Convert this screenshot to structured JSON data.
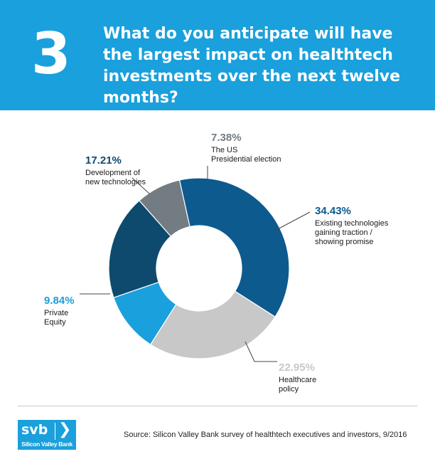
{
  "header": {
    "number": "3",
    "question": "What do you anticipate will have the largest impact on healthtech investments over the next twelve months?"
  },
  "chart_data": {
    "type": "pie",
    "donut": true,
    "slices": [
      {
        "value": 34.43,
        "label": "34.43%",
        "lines": [
          "Existing technologies",
          "gaining traction /",
          "showing promise"
        ],
        "color": "#0d5a8f",
        "label_color": "#0d5a8f"
      },
      {
        "value": 22.95,
        "label": "22.95%",
        "lines": [
          "Healthcare",
          "policy"
        ],
        "color": "#c8c8c8",
        "label_color": "#c8c8c8"
      },
      {
        "value": 9.84,
        "label": "9.84%",
        "lines": [
          "Private",
          "Equity"
        ],
        "color": "#1aa0dc",
        "label_color": "#1aa0dc"
      },
      {
        "value": 17.21,
        "label": "17.21%",
        "lines": [
          "Development of",
          "new technologies"
        ],
        "color": "#0e4a6e",
        "label_color": "#0e4a6e"
      },
      {
        "value": 7.38,
        "label": "7.38%",
        "lines": [
          "The US",
          "Presidential election"
        ],
        "color": "#737c82",
        "label_color": "#737c82"
      }
    ]
  },
  "footer": {
    "logo_text": "svb",
    "logo_chevron": "❯",
    "logo_subtext": "Silicon Valley Bank",
    "source": "Source: Silicon Valley Bank survey of healthtech executives and investors, 9/2016"
  }
}
